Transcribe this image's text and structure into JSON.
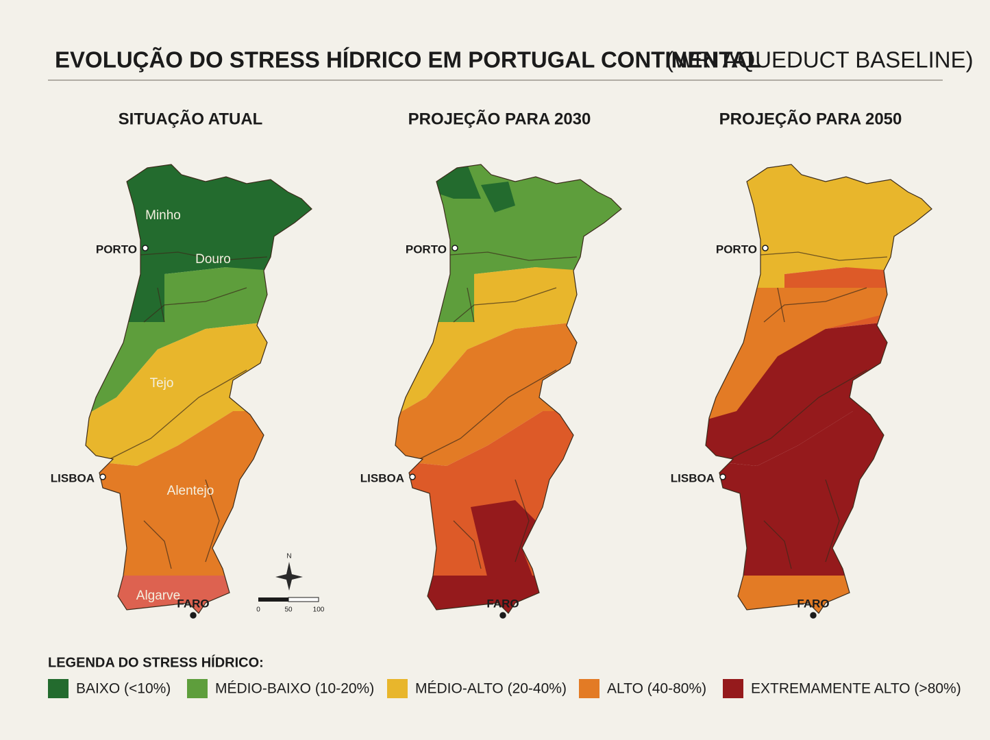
{
  "title": {
    "main": "EVOLUÇÃO DO STRESS HÍDRICO EM PORTUGAL CONTINENTAL",
    "source": "(WRI AQUEDUCT BASELINE)"
  },
  "panels": [
    {
      "title": "SITUAÇÃO ATUAL",
      "regions": [
        "Minho",
        "Douro",
        "Tejo",
        "Alentejo",
        "Algarve"
      ],
      "cities": [
        "PORTO",
        "LISBOA",
        "FARO"
      ]
    },
    {
      "title": "PROJEÇÃO PARA 2030",
      "cities": [
        "PORTO",
        "LISBOA",
        "FARO"
      ]
    },
    {
      "title": "PROJEÇÃO PARA 2050",
      "cities": [
        "PORTO",
        "LISBOA",
        "FARO"
      ]
    }
  ],
  "compass": "N",
  "scale": [
    0,
    50,
    100
  ],
  "legend": {
    "title": "LEGENDA DO STRESS HÍDRICO:",
    "items": [
      {
        "label": "BAIXO (<10%)",
        "color": "#236b2e"
      },
      {
        "label": "MÉDIO-BAIXO (10-20%)",
        "color": "#5e9e3c"
      },
      {
        "label": "MÉDIO-ALTO (20-40%)",
        "color": "#e8b62c"
      },
      {
        "label": "ALTO (40-80%)",
        "color": "#e37b25"
      },
      {
        "label": "EXTREMAMENTE ALTO (>80%)",
        "color": "#951a1c"
      }
    ]
  }
}
